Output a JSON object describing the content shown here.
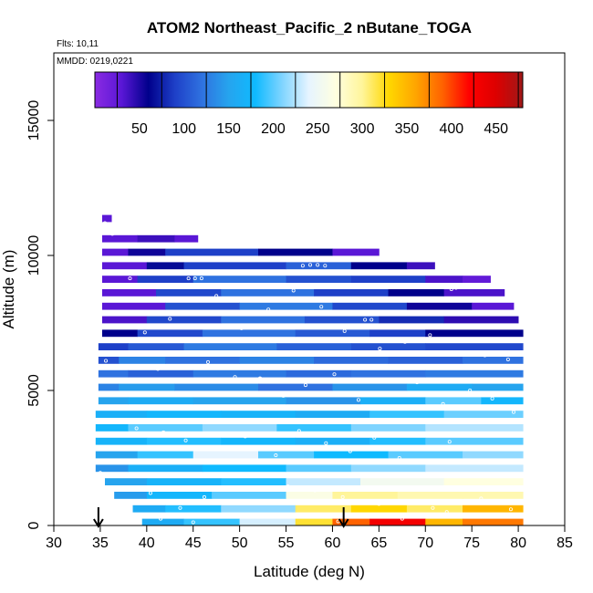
{
  "chart_data": {
    "type": "heatmap",
    "title": "ATOM2 Northeast_Pacific_2 nButane_TOGA",
    "flights_note": "Flts: 10,11",
    "date_note": "MMDD: 0219,0221",
    "xlabel": "Latitude (deg N)",
    "ylabel": "Altitude (m)",
    "xlim": [
      30,
      85
    ],
    "ylim": [
      0,
      17500
    ],
    "x_ticks": [
      "30",
      "35",
      "40",
      "45",
      "50",
      "55",
      "60",
      "65",
      "70",
      "75",
      "80",
      "85"
    ],
    "y_ticks": [
      "0",
      "5000",
      "10000",
      "15000"
    ],
    "colorbar": {
      "min": 0,
      "max": 480,
      "tick_labels": [
        "50",
        "100",
        "150",
        "200",
        "250",
        "300",
        "350",
        "400",
        "450"
      ],
      "colors": [
        "#8a2be2",
        "#5a17d6",
        "#00008b",
        "#1e40c8",
        "#2f72e0",
        "#26a4ee",
        "#0fbaff",
        "#7fd4ff",
        "#e6f4ff",
        "#ffffe0",
        "#fff59a",
        "#ffd700",
        "#ffa500",
        "#ff6200",
        "#ff0000",
        "#dd0000",
        "#a01818"
      ]
    },
    "band_height_m": 250,
    "bands": [
      {
        "alt": 11250,
        "segments": [
          [
            35.2,
            36.2,
            30
          ]
        ]
      },
      {
        "alt": 10500,
        "segments": [
          [
            35.2,
            39,
            30
          ],
          [
            39,
            43,
            40
          ],
          [
            43,
            45.5,
            30
          ]
        ]
      },
      {
        "alt": 10000,
        "segments": [
          [
            35.2,
            38,
            30
          ],
          [
            38,
            42,
            55
          ],
          [
            42,
            52,
            90
          ],
          [
            52,
            60,
            60
          ],
          [
            60,
            65,
            30
          ]
        ]
      },
      {
        "alt": 9500,
        "segments": [
          [
            35.2,
            40,
            30
          ],
          [
            40,
            44,
            65
          ],
          [
            44,
            55,
            90
          ],
          [
            55,
            62,
            110
          ],
          [
            62,
            68,
            60
          ],
          [
            68,
            71,
            40
          ]
        ]
      },
      {
        "alt": 9000,
        "segments": [
          [
            35.2,
            39,
            30
          ],
          [
            39,
            45,
            90
          ],
          [
            45,
            55,
            120
          ],
          [
            55,
            62,
            100
          ],
          [
            62,
            70,
            90
          ],
          [
            70,
            74,
            35
          ],
          [
            74,
            77,
            25
          ]
        ]
      },
      {
        "alt": 8500,
        "segments": [
          [
            35.2,
            41,
            30
          ],
          [
            41,
            48,
            95
          ],
          [
            48,
            58,
            120
          ],
          [
            58,
            66,
            90
          ],
          [
            66,
            72,
            60
          ],
          [
            72,
            78.5,
            35
          ]
        ]
      },
      {
        "alt": 8000,
        "segments": [
          [
            35.2,
            42,
            30
          ],
          [
            42,
            50,
            100
          ],
          [
            50,
            60,
            125
          ],
          [
            60,
            68,
            95
          ],
          [
            68,
            75,
            55
          ],
          [
            75,
            79.5,
            30
          ]
        ]
      },
      {
        "alt": 7500,
        "segments": [
          [
            35.2,
            40,
            35
          ],
          [
            40,
            48,
            95
          ],
          [
            48,
            57,
            120
          ],
          [
            57,
            65,
            100
          ],
          [
            65,
            72,
            80
          ],
          [
            72,
            80,
            45
          ]
        ]
      },
      {
        "alt": 7000,
        "segments": [
          [
            35.2,
            39,
            60
          ],
          [
            39,
            46,
            95
          ],
          [
            46,
            56,
            120
          ],
          [
            56,
            64,
            105
          ],
          [
            64,
            70,
            90
          ],
          [
            70,
            80.5,
            60
          ]
        ]
      },
      {
        "alt": 6500,
        "segments": [
          [
            34.8,
            38,
            90
          ],
          [
            38,
            44,
            105
          ],
          [
            44,
            54,
            125
          ],
          [
            54,
            62,
            110
          ],
          [
            62,
            70,
            100
          ],
          [
            70,
            80.5,
            95
          ]
        ]
      },
      {
        "alt": 6000,
        "segments": [
          [
            34.8,
            37,
            100
          ],
          [
            37,
            42,
            130
          ],
          [
            42,
            50,
            120
          ],
          [
            50,
            58,
            130
          ],
          [
            58,
            66,
            115
          ],
          [
            66,
            74,
            110
          ],
          [
            74,
            80.5,
            120
          ]
        ]
      },
      {
        "alt": 5500,
        "segments": [
          [
            34.8,
            38,
            120
          ],
          [
            38,
            45,
            110
          ],
          [
            45,
            55,
            125
          ],
          [
            55,
            62,
            115
          ],
          [
            62,
            70,
            120
          ],
          [
            70,
            80.5,
            125
          ]
        ]
      },
      {
        "alt": 5000,
        "segments": [
          [
            34.8,
            37,
            130
          ],
          [
            37,
            43,
            145
          ],
          [
            43,
            52,
            135
          ],
          [
            52,
            60,
            120
          ],
          [
            60,
            68,
            140
          ],
          [
            68,
            75,
            160
          ],
          [
            75,
            80.5,
            150
          ]
        ]
      },
      {
        "alt": 4500,
        "segments": [
          [
            34.8,
            38,
            150
          ],
          [
            38,
            45,
            160
          ],
          [
            45,
            55,
            150
          ],
          [
            55,
            63,
            140
          ],
          [
            63,
            70,
            165
          ],
          [
            70,
            76,
            200
          ],
          [
            76,
            80.5,
            175
          ]
        ]
      },
      {
        "alt": 4000,
        "segments": [
          [
            34.5,
            40,
            165
          ],
          [
            40,
            48,
            175
          ],
          [
            48,
            56,
            170
          ],
          [
            56,
            64,
            160
          ],
          [
            64,
            72,
            190
          ],
          [
            72,
            80.5,
            205
          ]
        ]
      },
      {
        "alt": 3500,
        "segments": [
          [
            34.5,
            38,
            175
          ],
          [
            38,
            46,
            200
          ],
          [
            46,
            54,
            215
          ],
          [
            54,
            62,
            190
          ],
          [
            62,
            70,
            210
          ],
          [
            70,
            80.5,
            225
          ]
        ]
      },
      {
        "alt": 3000,
        "segments": [
          [
            34.5,
            40,
            170
          ],
          [
            40,
            48,
            185
          ],
          [
            48,
            56,
            175
          ],
          [
            56,
            64,
            165
          ],
          [
            64,
            70,
            185
          ],
          [
            70,
            80.5,
            200
          ]
        ]
      },
      {
        "alt": 2500,
        "segments": [
          [
            34.5,
            39,
            150
          ],
          [
            39,
            45,
            190
          ],
          [
            45,
            52,
            240
          ],
          [
            52,
            58,
            200
          ],
          [
            58,
            66,
            180
          ],
          [
            66,
            74,
            200
          ],
          [
            74,
            80.5,
            215
          ]
        ]
      },
      {
        "alt": 2000,
        "segments": [
          [
            34.5,
            38,
            140
          ],
          [
            38,
            46,
            165
          ],
          [
            46,
            55,
            180
          ],
          [
            55,
            62,
            200
          ],
          [
            62,
            70,
            215
          ],
          [
            70,
            80.5,
            230
          ]
        ]
      },
      {
        "alt": 1500,
        "segments": [
          [
            35.5,
            40,
            150
          ],
          [
            40,
            48,
            170
          ],
          [
            48,
            55,
            185
          ],
          [
            55,
            63,
            230
          ],
          [
            63,
            72,
            255
          ],
          [
            72,
            80.5,
            270
          ]
        ]
      },
      {
        "alt": 1000,
        "segments": [
          [
            36.5,
            40,
            145
          ],
          [
            40,
            47,
            175
          ],
          [
            47,
            55,
            200
          ],
          [
            55,
            60,
            265
          ],
          [
            60,
            67,
            300
          ],
          [
            67,
            74,
            290
          ],
          [
            74,
            80.5,
            290
          ]
        ]
      },
      {
        "alt": 500,
        "segments": [
          [
            38.5,
            42,
            160
          ],
          [
            42,
            48,
            185
          ],
          [
            48,
            56,
            215
          ],
          [
            56,
            62,
            310
          ],
          [
            62,
            68,
            330
          ],
          [
            68,
            74,
            310
          ],
          [
            74,
            80.5,
            350
          ]
        ]
      },
      {
        "alt": 0,
        "segments": [
          [
            39.5,
            44,
            160
          ],
          [
            44,
            50,
            190
          ],
          [
            50,
            56,
            235
          ],
          [
            56,
            60,
            320
          ],
          [
            60,
            64,
            390
          ],
          [
            64,
            70,
            430
          ],
          [
            70,
            74,
            350
          ],
          [
            74,
            80.5,
            380
          ]
        ]
      }
    ],
    "sample_points": [
      [
        35.5,
        11200
      ],
      [
        35.9,
        10850
      ],
      [
        36.3,
        10800
      ],
      [
        44.5,
        9150
      ],
      [
        45.2,
        9150
      ],
      [
        45.9,
        9150
      ],
      [
        56.8,
        9620
      ],
      [
        57.6,
        9650
      ],
      [
        58.4,
        9650
      ],
      [
        59.2,
        9620
      ],
      [
        63.5,
        7620
      ],
      [
        64.2,
        7620
      ],
      [
        72.8,
        8750
      ],
      [
        73.3,
        8800
      ],
      [
        36.5,
        8900
      ],
      [
        38.2,
        9150
      ],
      [
        39.8,
        7150
      ],
      [
        42.5,
        7650
      ],
      [
        47.5,
        8500
      ],
      [
        50.2,
        7300
      ],
      [
        53.1,
        8000
      ],
      [
        55.8,
        8700
      ],
      [
        58.8,
        8100
      ],
      [
        61.3,
        7200
      ],
      [
        65.1,
        6550
      ],
      [
        67.8,
        6800
      ],
      [
        70.5,
        7050
      ],
      [
        71.0,
        6900
      ],
      [
        73.6,
        6400
      ],
      [
        76.4,
        6300
      ],
      [
        78.9,
        6150
      ],
      [
        35.6,
        6100
      ],
      [
        37.8,
        5900
      ],
      [
        41.2,
        5800
      ],
      [
        43.0,
        4850
      ],
      [
        46.6,
        6050
      ],
      [
        49.5,
        5500
      ],
      [
        52.2,
        5450
      ],
      [
        54.7,
        4800
      ],
      [
        57.1,
        5200
      ],
      [
        60.2,
        5600
      ],
      [
        62.8,
        4650
      ],
      [
        66.3,
        4900
      ],
      [
        69.1,
        5300
      ],
      [
        71.9,
        4500
      ],
      [
        74.8,
        5000
      ],
      [
        77.2,
        4700
      ],
      [
        79.5,
        4200
      ],
      [
        36.2,
        3900
      ],
      [
        38.9,
        3600
      ],
      [
        41.8,
        3450
      ],
      [
        44.2,
        3150
      ],
      [
        47.3,
        2850
      ],
      [
        50.6,
        3300
      ],
      [
        53.9,
        2600
      ],
      [
        56.4,
        3500
      ],
      [
        59.3,
        3050
      ],
      [
        61.9,
        2750
      ],
      [
        64.5,
        3250
      ],
      [
        67.2,
        2500
      ],
      [
        70.1,
        2850
      ],
      [
        72.6,
        3100
      ],
      [
        75.1,
        2400
      ],
      [
        78.3,
        2900
      ],
      [
        35.0,
        1950
      ],
      [
        34.9,
        1700
      ],
      [
        37.6,
        1350
      ],
      [
        40.4,
        1200
      ],
      [
        43.6,
        650
      ],
      [
        46.2,
        1050
      ],
      [
        49.9,
        900
      ],
      [
        55.2,
        1450
      ],
      [
        58.1,
        1300
      ],
      [
        61.1,
        1050
      ],
      [
        65.0,
        800
      ],
      [
        67.5,
        250
      ],
      [
        70.8,
        650
      ],
      [
        72.3,
        500
      ],
      [
        76.0,
        1000
      ],
      [
        79.2,
        600
      ],
      [
        41.5,
        250
      ],
      [
        45.0,
        120
      ],
      [
        60.6,
        150
      ]
    ],
    "arrows": [
      34.8,
      61.2
    ]
  }
}
